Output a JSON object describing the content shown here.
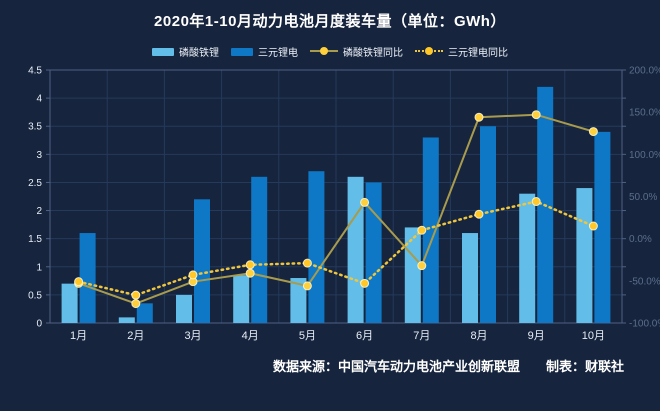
{
  "title": {
    "text": "2020年1-10月动力电池月度装车量（单位：GWh）"
  },
  "legend": {
    "items": [
      {
        "id": "lfp",
        "label": "磷酸铁锂",
        "type": "bar",
        "color": "#62BEE8"
      },
      {
        "id": "ncm",
        "label": "三元锂电",
        "type": "bar",
        "color": "#0E78C6"
      },
      {
        "id": "lfp-yoy",
        "label": "磷酸铁锂同比",
        "type": "line-solid",
        "color": "#A89B4D",
        "marker": "#FFD03C"
      },
      {
        "id": "ncm-yoy",
        "label": "三元锂电同比",
        "type": "line-dotted",
        "color": "#EFC53C",
        "marker": "#FFC828"
      }
    ]
  },
  "chart_data": {
    "type": "combo-bar-line",
    "title": "2020年1-10月动力电池月度装车量（单位：GWh）",
    "categories": [
      "1月",
      "2月",
      "3月",
      "4月",
      "5月",
      "6月",
      "7月",
      "8月",
      "9月",
      "10月"
    ],
    "bar_series": [
      {
        "id": "lfp",
        "name": "磷酸铁锂",
        "unit": "GWh",
        "color": "#62BEE8",
        "values": [
          0.7,
          0.1,
          0.5,
          0.85,
          0.8,
          2.6,
          1.7,
          1.6,
          2.3,
          2.4
        ]
      },
      {
        "id": "ncm",
        "name": "三元锂电",
        "unit": "GWh",
        "color": "#0E78C6",
        "values": [
          1.6,
          0.35,
          2.2,
          2.6,
          2.7,
          2.5,
          3.3,
          3.5,
          4.2,
          3.4
        ]
      }
    ],
    "line_series": [
      {
        "id": "lfp-yoy",
        "name": "磷酸铁锂同比",
        "unit": "%",
        "style": "solid",
        "color": "#A89B4D",
        "marker": "#FFD03C",
        "values_pct": [
          -53,
          -77,
          -51,
          -41,
          -56,
          43,
          -32,
          144,
          147,
          127
        ]
      },
      {
        "id": "ncm-yoy",
        "name": "三元锂电同比",
        "unit": "%",
        "style": "dotted",
        "color": "#EFC53C",
        "marker": "#FFC828",
        "values_pct": [
          -51,
          -67,
          -43,
          -31,
          -29,
          -53,
          10,
          29,
          44,
          15
        ]
      }
    ],
    "left_axis": {
      "min": 0,
      "max": 4.5,
      "step": 0.5,
      "tick_labels": [
        "0",
        "0.5",
        "1",
        "1.5",
        "2",
        "2.5",
        "3",
        "3.5",
        "4",
        "4.5"
      ]
    },
    "right_axis": {
      "min": -100,
      "max": 200,
      "step": 50,
      "tick_labels": [
        "-100.0%",
        "-50.0%",
        "0.0%",
        "50.0%",
        "100.0%",
        "150.0%",
        "200.0%"
      ]
    },
    "grid": true,
    "legend_position": "top"
  },
  "footer": {
    "source": "数据来源：中国汽车动力电池产业创新联盟",
    "maker": "制表：财联社"
  },
  "colors": {
    "background": "#16243E",
    "grid": "#243A5C",
    "axis_border": "#4E6183",
    "left_axis_label": "#E8EEF6",
    "right_axis_label": "#5A6E8C",
    "x_axis_label": "#E8EEF6",
    "title": "#FFFFFF",
    "footer": "#FFFFFF"
  }
}
